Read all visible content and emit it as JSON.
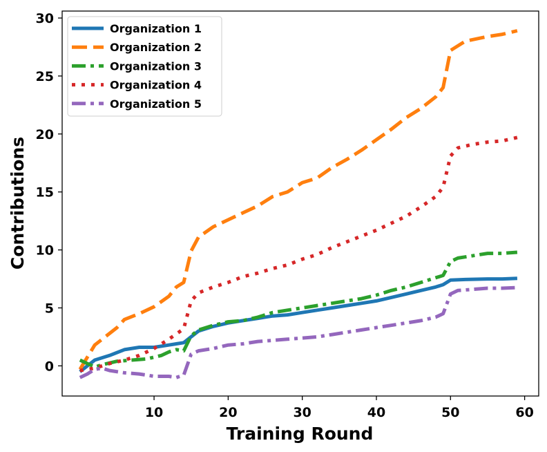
{
  "chart_data": {
    "type": "line",
    "title": "",
    "xlabel": "Training Round",
    "ylabel": "Contributions",
    "xlim": [
      -2.4,
      61.9
    ],
    "ylim": [
      -2.6,
      30.6
    ],
    "xticks": [
      10,
      20,
      30,
      40,
      50,
      60
    ],
    "yticks": [
      0,
      5,
      10,
      15,
      20,
      25,
      30
    ],
    "grid": false,
    "legend_position": "top-left",
    "series": [
      {
        "name": "Organization 1",
        "color": "#1f77b4",
        "style": "solid",
        "x": [
          0,
          2,
          4,
          6,
          8,
          10,
          12,
          14,
          15,
          16,
          18,
          20,
          22,
          24,
          26,
          28,
          30,
          32,
          34,
          36,
          38,
          40,
          42,
          44,
          46,
          48,
          49,
          50,
          52,
          55,
          57,
          59
        ],
        "y": [
          -0.5,
          0.5,
          0.9,
          1.4,
          1.6,
          1.6,
          1.8,
          2.0,
          2.5,
          3.0,
          3.4,
          3.7,
          3.9,
          4.1,
          4.3,
          4.4,
          4.6,
          4.8,
          5.0,
          5.2,
          5.4,
          5.6,
          5.9,
          6.2,
          6.5,
          6.8,
          7.0,
          7.4,
          7.45,
          7.5,
          7.5,
          7.55
        ]
      },
      {
        "name": "Organization 2",
        "color": "#ff7f0e",
        "style": "dashed",
        "x": [
          0,
          2,
          4,
          5,
          6,
          8,
          10,
          12,
          13,
          14,
          15,
          16,
          18,
          20,
          22,
          24,
          26,
          28,
          30,
          32,
          34,
          36,
          38,
          40,
          42,
          44,
          46,
          48,
          49,
          50,
          52,
          55,
          57,
          59
        ],
        "y": [
          -0.3,
          1.8,
          2.8,
          3.3,
          4.0,
          4.5,
          5.1,
          6.0,
          6.8,
          7.2,
          9.9,
          11.1,
          12.0,
          12.6,
          13.2,
          13.8,
          14.6,
          15.0,
          15.8,
          16.2,
          17.1,
          17.8,
          18.6,
          19.5,
          20.4,
          21.4,
          22.2,
          23.2,
          24.0,
          27.2,
          28.0,
          28.4,
          28.6,
          28.9
        ]
      },
      {
        "name": "Organization 3",
        "color": "#2ca02c",
        "style": "dashdot",
        "x": [
          0,
          2,
          3,
          5,
          7,
          9,
          11,
          12,
          13,
          14,
          15,
          16,
          18,
          20,
          22,
          24,
          26,
          28,
          30,
          32,
          34,
          36,
          38,
          40,
          42,
          44,
          46,
          48,
          49,
          50,
          51,
          55,
          57,
          59
        ],
        "y": [
          0.5,
          -0.1,
          0.1,
          0.4,
          0.5,
          0.6,
          0.9,
          1.2,
          1.4,
          1.3,
          2.6,
          3.1,
          3.5,
          3.8,
          3.9,
          4.2,
          4.6,
          4.8,
          5.0,
          5.2,
          5.4,
          5.6,
          5.8,
          6.1,
          6.5,
          6.8,
          7.2,
          7.6,
          7.8,
          9.0,
          9.3,
          9.7,
          9.7,
          9.8
        ]
      },
      {
        "name": "Organization 4",
        "color": "#d62728",
        "style": "dotted",
        "x": [
          0,
          2,
          4,
          6,
          8,
          10,
          12,
          14,
          15,
          16,
          18,
          20,
          22,
          24,
          26,
          28,
          30,
          32,
          34,
          36,
          38,
          40,
          42,
          44,
          46,
          48,
          49,
          50,
          51,
          53,
          55,
          57,
          59
        ],
        "y": [
          -0.4,
          -0.2,
          0.2,
          0.5,
          0.9,
          1.5,
          2.3,
          3.2,
          5.6,
          6.3,
          6.8,
          7.2,
          7.7,
          8.0,
          8.4,
          8.7,
          9.2,
          9.6,
          10.2,
          10.7,
          11.2,
          11.7,
          12.3,
          12.9,
          13.7,
          14.6,
          15.4,
          18.1,
          18.8,
          19.1,
          19.3,
          19.4,
          19.7
        ]
      },
      {
        "name": "Organization 5",
        "color": "#9467bd",
        "style": "dashdot",
        "x": [
          0,
          1,
          2,
          3,
          4,
          6,
          8,
          10,
          12,
          13,
          14,
          15,
          16,
          18,
          20,
          22,
          24,
          26,
          28,
          30,
          32,
          34,
          36,
          38,
          40,
          42,
          44,
          46,
          48,
          49,
          50,
          51,
          53,
          55,
          57,
          59
        ],
        "y": [
          -1.0,
          -0.7,
          -0.3,
          -0.2,
          -0.4,
          -0.6,
          -0.7,
          -0.9,
          -0.9,
          -1.0,
          -0.8,
          1.0,
          1.3,
          1.5,
          1.8,
          1.9,
          2.1,
          2.2,
          2.3,
          2.4,
          2.5,
          2.7,
          2.9,
          3.1,
          3.3,
          3.5,
          3.7,
          3.9,
          4.2,
          4.5,
          6.2,
          6.5,
          6.6,
          6.7,
          6.7,
          6.75
        ]
      }
    ]
  }
}
